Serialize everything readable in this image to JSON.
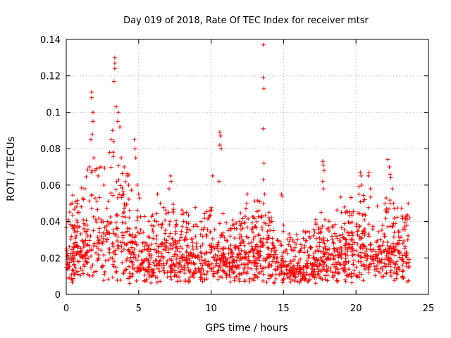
{
  "chart_data": {
    "type": "scatter",
    "title": "Day 019 of 2018, Rate Of TEC Index for receiver mtsr",
    "xlabel": "GPS time / hours",
    "ylabel": "ROTI / TECUs",
    "xlim": [
      0,
      25
    ],
    "ylim": [
      0,
      0.14
    ],
    "xticks": [
      0,
      5,
      10,
      15,
      20,
      25
    ],
    "xtick_labels": [
      "0",
      "5",
      "10",
      "15",
      "20",
      "25"
    ],
    "yticks": [
      0,
      0.02,
      0.04,
      0.06,
      0.08,
      0.1,
      0.12,
      0.14
    ],
    "ytick_labels": [
      "0",
      "0.02",
      "0.04",
      "0.06",
      "0.08",
      "0.1",
      "0.12",
      "0.14"
    ],
    "grid": true,
    "marker": "+",
    "color": "#ff0000",
    "series": [
      {
        "name": "ROTI",
        "base_profile": [
          [
            0.0,
            0.018
          ],
          [
            0.5,
            0.025
          ],
          [
            1.0,
            0.022
          ],
          [
            1.5,
            0.028
          ],
          [
            2.0,
            0.03
          ],
          [
            2.5,
            0.027
          ],
          [
            3.0,
            0.032
          ],
          [
            3.5,
            0.035
          ],
          [
            4.0,
            0.03
          ],
          [
            4.5,
            0.026
          ],
          [
            5.0,
            0.022
          ],
          [
            5.5,
            0.018
          ],
          [
            6.0,
            0.018
          ],
          [
            6.5,
            0.02
          ],
          [
            7.0,
            0.02
          ],
          [
            7.5,
            0.019
          ],
          [
            8.0,
            0.018
          ],
          [
            8.5,
            0.019
          ],
          [
            9.0,
            0.02
          ],
          [
            9.5,
            0.022
          ],
          [
            10.0,
            0.022
          ],
          [
            10.5,
            0.02
          ],
          [
            11.0,
            0.018
          ],
          [
            11.5,
            0.018
          ],
          [
            12.0,
            0.02
          ],
          [
            12.5,
            0.022
          ],
          [
            13.0,
            0.022
          ],
          [
            13.5,
            0.022
          ],
          [
            14.0,
            0.02
          ],
          [
            14.5,
            0.018
          ],
          [
            15.0,
            0.015
          ],
          [
            15.5,
            0.014
          ],
          [
            16.0,
            0.014
          ],
          [
            16.5,
            0.015
          ],
          [
            17.0,
            0.016
          ],
          [
            17.5,
            0.018
          ],
          [
            18.0,
            0.02
          ],
          [
            18.5,
            0.02
          ],
          [
            19.0,
            0.022
          ],
          [
            19.5,
            0.022
          ],
          [
            20.0,
            0.022
          ],
          [
            20.5,
            0.024
          ],
          [
            21.0,
            0.022
          ],
          [
            21.5,
            0.02
          ],
          [
            22.0,
            0.022
          ],
          [
            22.5,
            0.022
          ],
          [
            23.0,
            0.02
          ],
          [
            23.5,
            0.02
          ],
          [
            23.75,
            0.018
          ]
        ],
        "spikes": [
          [
            1.75,
            0.108
          ],
          [
            1.75,
            0.111
          ],
          [
            1.85,
            0.095
          ],
          [
            1.85,
            0.1
          ],
          [
            1.7,
            0.085
          ],
          [
            1.8,
            0.088
          ],
          [
            1.9,
            0.075
          ],
          [
            1.6,
            0.07
          ],
          [
            3.35,
            0.13
          ],
          [
            3.35,
            0.127
          ],
          [
            3.35,
            0.124
          ],
          [
            3.3,
            0.117
          ],
          [
            3.45,
            0.103
          ],
          [
            3.6,
            0.1
          ],
          [
            3.55,
            0.095
          ],
          [
            3.7,
            0.092
          ],
          [
            3.2,
            0.09
          ],
          [
            3.1,
            0.085
          ],
          [
            3.0,
            0.078
          ],
          [
            3.8,
            0.075
          ],
          [
            4.0,
            0.07
          ],
          [
            4.2,
            0.065
          ],
          [
            4.3,
            0.06
          ],
          [
            2.4,
            0.07
          ],
          [
            2.2,
            0.065
          ],
          [
            2.6,
            0.06
          ],
          [
            0.8,
            0.045
          ],
          [
            1.2,
            0.052
          ],
          [
            1.3,
            0.058
          ],
          [
            4.7,
            0.085
          ],
          [
            4.75,
            0.08
          ],
          [
            4.8,
            0.075
          ],
          [
            4.9,
            0.06
          ],
          [
            5.0,
            0.055
          ],
          [
            7.2,
            0.065
          ],
          [
            7.25,
            0.062
          ],
          [
            7.1,
            0.058
          ],
          [
            6.3,
            0.055
          ],
          [
            6.5,
            0.05
          ],
          [
            8.3,
            0.045
          ],
          [
            9.3,
            0.04
          ],
          [
            10.1,
            0.065
          ],
          [
            10.6,
            0.089
          ],
          [
            10.65,
            0.087
          ],
          [
            10.6,
            0.082
          ],
          [
            10.7,
            0.08
          ],
          [
            10.55,
            0.062
          ],
          [
            12.5,
            0.055
          ],
          [
            12.45,
            0.05
          ],
          [
            12.4,
            0.047
          ],
          [
            12.0,
            0.038
          ],
          [
            13.6,
            0.137
          ],
          [
            13.6,
            0.119
          ],
          [
            13.65,
            0.113
          ],
          [
            13.6,
            0.091
          ],
          [
            13.65,
            0.072
          ],
          [
            13.6,
            0.063
          ],
          [
            13.7,
            0.055
          ],
          [
            13.6,
            0.05
          ],
          [
            14.0,
            0.045
          ],
          [
            14.2,
            0.04
          ],
          [
            14.85,
            0.055
          ],
          [
            14.9,
            0.054
          ],
          [
            15.0,
            0.038
          ],
          [
            17.7,
            0.073
          ],
          [
            17.75,
            0.071
          ],
          [
            17.8,
            0.068
          ],
          [
            17.7,
            0.062
          ],
          [
            17.75,
            0.058
          ],
          [
            17.6,
            0.045
          ],
          [
            19.0,
            0.045
          ],
          [
            19.2,
            0.048
          ],
          [
            20.3,
            0.067
          ],
          [
            20.35,
            0.065
          ],
          [
            20.4,
            0.06
          ],
          [
            20.2,
            0.055
          ],
          [
            20.6,
            0.052
          ],
          [
            20.9,
            0.067
          ],
          [
            20.85,
            0.065
          ],
          [
            21.0,
            0.058
          ],
          [
            22.2,
            0.074
          ],
          [
            22.3,
            0.07
          ],
          [
            22.35,
            0.066
          ],
          [
            22.4,
            0.064
          ],
          [
            22.5,
            0.058
          ],
          [
            22.0,
            0.05
          ],
          [
            22.6,
            0.05
          ],
          [
            23.6,
            0.05
          ],
          [
            23.5,
            0.043
          ],
          [
            23.7,
            0.042
          ]
        ]
      }
    ]
  }
}
